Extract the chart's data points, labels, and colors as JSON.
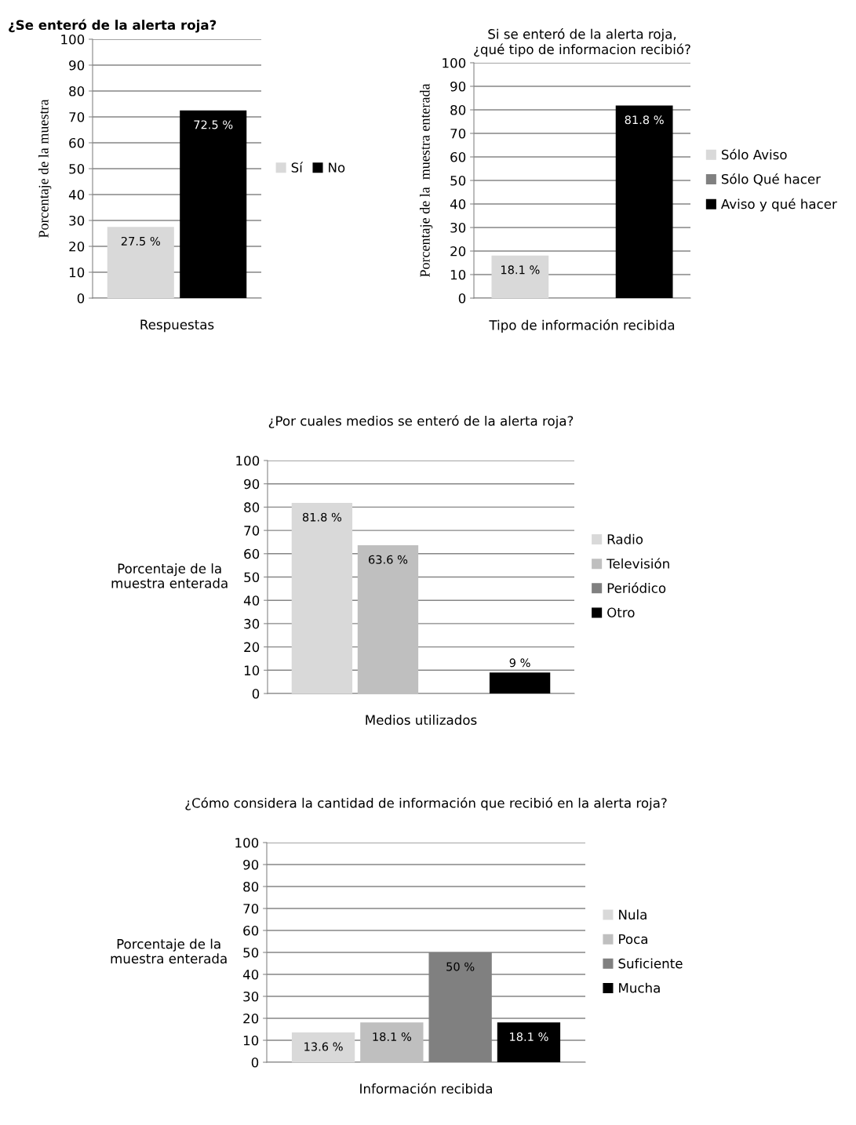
{
  "chart_data": [
    {
      "type": "bar",
      "title": "¿Se enteró de la alerta roja?",
      "xlabel": "Respuestas",
      "ylabel": "Porcentaje de la muestra",
      "categories": [
        null
      ],
      "ylim": [
        0,
        100
      ],
      "yticks": [
        0,
        10,
        20,
        30,
        40,
        50,
        60,
        70,
        80,
        90,
        100
      ],
      "grid": "y",
      "legend": "right",
      "series": [
        {
          "name": "Sí",
          "color": "#d9d9d9",
          "values": [
            27.5
          ],
          "value_labels": [
            "27.5 %"
          ]
        },
        {
          "name": "No",
          "color": "#000000",
          "values": [
            72.5
          ],
          "value_labels": [
            "72.5 %"
          ]
        }
      ]
    },
    {
      "type": "bar",
      "title": "Si se enteró de la alerta roja,\n¿qué tipo de informacion recibió?",
      "xlabel": "Tipo de información recibida",
      "ylabel": "Porcentaje de la  muestra enterada",
      "categories": [
        null
      ],
      "ylim": [
        0,
        100
      ],
      "yticks": [
        0,
        10,
        20,
        30,
        40,
        50,
        60,
        70,
        80,
        90,
        100
      ],
      "grid": "y",
      "legend": "right",
      "series": [
        {
          "name": "Sólo Aviso",
          "color": "#d9d9d9",
          "values": [
            18.1
          ],
          "value_labels": [
            "18.1 %"
          ]
        },
        {
          "name": "Sólo Qué hacer",
          "color": "#808080",
          "values": [
            0
          ],
          "value_labels": [
            null
          ]
        },
        {
          "name": "Aviso y qué hacer",
          "color": "#000000",
          "values": [
            81.8
          ],
          "value_labels": [
            "81.8 %"
          ]
        }
      ]
    },
    {
      "type": "bar",
      "title": "¿Por cuales medios se enteró de la alerta roja?",
      "xlabel": "Medios utilizados",
      "ylabel": "Porcentaje de la\nmuestra enterada",
      "categories": [
        null
      ],
      "ylim": [
        0,
        100
      ],
      "yticks": [
        0,
        10,
        20,
        30,
        40,
        50,
        60,
        70,
        80,
        90,
        100
      ],
      "grid": "y",
      "legend": "right",
      "series": [
        {
          "name": "Radio",
          "color": "#d9d9d9",
          "values": [
            81.8
          ],
          "value_labels": [
            "81.8 %"
          ]
        },
        {
          "name": "Televisión",
          "color": "#bfbfbf",
          "values": [
            63.6
          ],
          "value_labels": [
            "63.6 %"
          ]
        },
        {
          "name": "Periódico",
          "color": "#808080",
          "values": [
            0
          ],
          "value_labels": [
            null
          ]
        },
        {
          "name": "Otro",
          "color": "#000000",
          "values": [
            9
          ],
          "value_labels": [
            "9 %"
          ]
        }
      ]
    },
    {
      "type": "bar",
      "title": "¿Cómo considera la cantidad de información que recibió en la alerta roja?",
      "xlabel": "Información recibida",
      "ylabel": "Porcentaje de la\nmuestra enterada",
      "categories": [
        null
      ],
      "ylim": [
        0,
        100
      ],
      "yticks": [
        0,
        10,
        20,
        30,
        40,
        50,
        60,
        70,
        80,
        90,
        100
      ],
      "grid": "y",
      "legend": "right",
      "series": [
        {
          "name": "Nula",
          "color": "#d9d9d9",
          "values": [
            13.6
          ],
          "value_labels": [
            "13.6 %"
          ]
        },
        {
          "name": "Poca",
          "color": "#bfbfbf",
          "values": [
            18.1
          ],
          "value_labels": [
            "18.1 %"
          ]
        },
        {
          "name": "Suficiente",
          "color": "#808080",
          "values": [
            50
          ],
          "value_labels": [
            "50 %"
          ]
        },
        {
          "name": "Mucha",
          "color": "#000000",
          "values": [
            18.1
          ],
          "value_labels": [
            "18.1 %"
          ]
        }
      ]
    }
  ]
}
